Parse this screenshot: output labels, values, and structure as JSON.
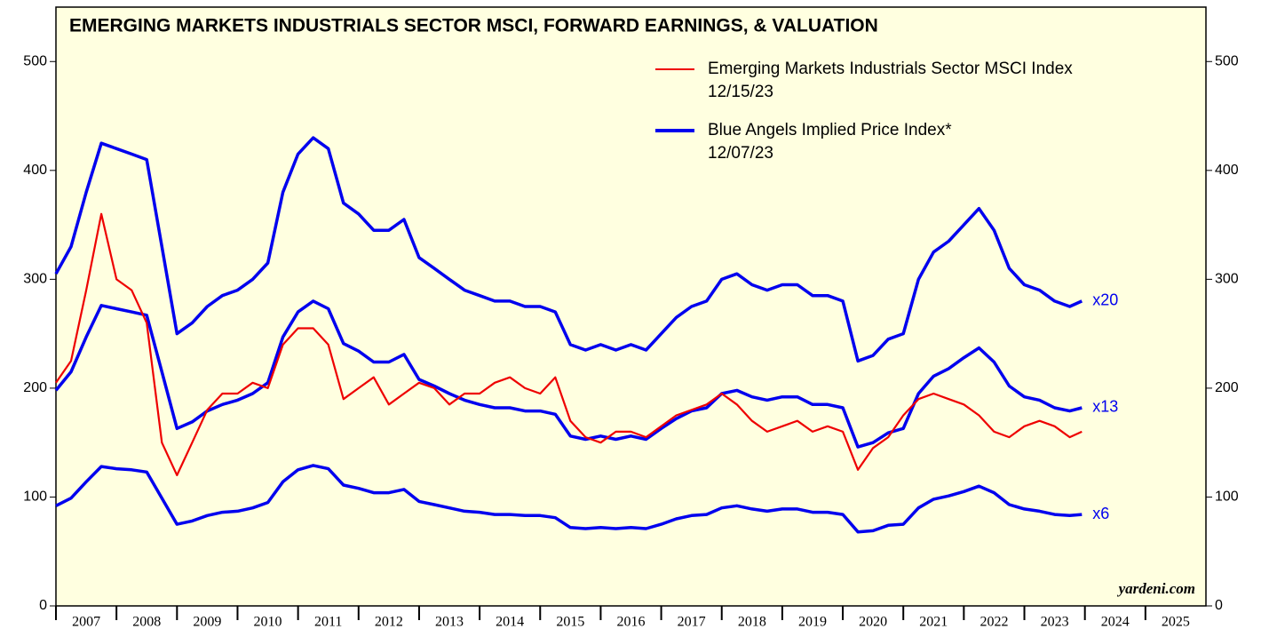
{
  "chart_data": {
    "type": "line",
    "title": "EMERGING MARKETS INDUSTRIALS SECTOR MSCI, FORWARD EARNINGS, & VALUATION",
    "watermark": "yardeni.com",
    "xlim": [
      2007,
      2026
    ],
    "xticks": [
      {
        "value": 2007,
        "label": "2007"
      },
      {
        "value": 2008,
        "label": "2008"
      },
      {
        "value": 2009,
        "label": "2009"
      },
      {
        "value": 2010,
        "label": "2010"
      },
      {
        "value": 2011,
        "label": "2011"
      },
      {
        "value": 2012,
        "label": "2012"
      },
      {
        "value": 2013,
        "label": "2013"
      },
      {
        "value": 2014,
        "label": "2014"
      },
      {
        "value": 2015,
        "label": "2015"
      },
      {
        "value": 2016,
        "label": "2016"
      },
      {
        "value": 2017,
        "label": "2017"
      },
      {
        "value": 2018,
        "label": "2018"
      },
      {
        "value": 2019,
        "label": "2019"
      },
      {
        "value": 2020,
        "label": "2020"
      },
      {
        "value": 2021,
        "label": "2021"
      },
      {
        "value": 2022,
        "label": "2022"
      },
      {
        "value": 2023,
        "label": "2023"
      },
      {
        "value": 2024,
        "label": "2024"
      },
      {
        "value": 2025,
        "label": "2025"
      }
    ],
    "ylim": [
      0,
      550
    ],
    "yticks": [
      0,
      100,
      200,
      300,
      400,
      500
    ],
    "x": [
      2007,
      2007.25,
      2007.5,
      2007.75,
      2008,
      2008.25,
      2008.5,
      2008.75,
      2009,
      2009.25,
      2009.5,
      2009.75,
      2010,
      2010.25,
      2010.5,
      2010.75,
      2011,
      2011.25,
      2011.5,
      2011.75,
      2012,
      2012.25,
      2012.5,
      2012.75,
      2013,
      2013.25,
      2013.5,
      2013.75,
      2014,
      2014.25,
      2014.5,
      2014.75,
      2015,
      2015.25,
      2015.5,
      2015.75,
      2016,
      2016.25,
      2016.5,
      2016.75,
      2017,
      2017.25,
      2017.5,
      2017.75,
      2018,
      2018.25,
      2018.5,
      2018.75,
      2019,
      2019.25,
      2019.5,
      2019.75,
      2020,
      2020.25,
      2020.5,
      2020.75,
      2021,
      2021.25,
      2021.5,
      2021.75,
      2022,
      2022.25,
      2022.5,
      2022.75,
      2023,
      2023.25,
      2023.5,
      2023.75,
      2023.95
    ],
    "series": [
      {
        "name": "Emerging Markets Industrials Sector MSCI Index",
        "date": "12/15/23",
        "color": "#ee0000",
        "values": [
          205,
          225,
          290,
          360,
          300,
          290,
          260,
          150,
          120,
          150,
          180,
          195,
          195,
          205,
          200,
          240,
          255,
          255,
          240,
          190,
          200,
          210,
          185,
          195,
          205,
          200,
          185,
          195,
          195,
          205,
          210,
          200,
          195,
          210,
          170,
          155,
          150,
          160,
          160,
          155,
          165,
          175,
          180,
          185,
          195,
          185,
          170,
          160,
          165,
          170,
          160,
          165,
          160,
          125,
          145,
          155,
          175,
          190,
          195,
          190,
          185,
          175,
          160,
          155,
          165,
          170,
          165,
          155,
          160
        ]
      },
      {
        "name": "x20",
        "color": "#0000ee",
        "values": [
          305,
          330,
          380,
          425,
          420,
          415,
          410,
          330,
          250,
          260,
          275,
          285,
          290,
          300,
          315,
          380,
          415,
          430,
          420,
          370,
          360,
          345,
          345,
          355,
          320,
          310,
          300,
          290,
          285,
          280,
          280,
          275,
          275,
          270,
          240,
          235,
          240,
          235,
          240,
          235,
          250,
          265,
          275,
          280,
          300,
          305,
          295,
          290,
          295,
          295,
          285,
          285,
          280,
          225,
          230,
          245,
          250,
          300,
          325,
          335,
          350,
          365,
          345,
          310,
          295,
          290,
          280,
          275,
          280
        ]
      },
      {
        "name": "x13",
        "color": "#0000ee",
        "values": [
          198,
          215,
          247,
          276,
          273,
          270,
          267,
          215,
          163,
          169,
          179,
          185,
          189,
          195,
          205,
          247,
          270,
          280,
          273,
          241,
          234,
          224,
          224,
          231,
          208,
          202,
          195,
          189,
          185,
          182,
          182,
          179,
          179,
          176,
          156,
          153,
          156,
          153,
          156,
          153,
          163,
          172,
          179,
          182,
          195,
          198,
          192,
          189,
          192,
          192,
          185,
          185,
          182,
          146,
          150,
          159,
          163,
          195,
          211,
          218,
          228,
          237,
          224,
          202,
          192,
          189,
          182,
          179,
          182
        ]
      },
      {
        "name": "x6",
        "color": "#0000ee",
        "values": [
          92,
          99,
          114,
          128,
          126,
          125,
          123,
          99,
          75,
          78,
          83,
          86,
          87,
          90,
          95,
          114,
          125,
          129,
          126,
          111,
          108,
          104,
          104,
          107,
          96,
          93,
          90,
          87,
          86,
          84,
          84,
          83,
          83,
          81,
          72,
          71,
          72,
          71,
          72,
          71,
          75,
          80,
          83,
          84,
          90,
          92,
          89,
          87,
          89,
          89,
          86,
          86,
          84,
          68,
          69,
          74,
          75,
          90,
          98,
          101,
          105,
          110,
          104,
          93,
          89,
          87,
          84,
          83,
          84
        ]
      }
    ],
    "blue_legend": {
      "name": "Blue Angels Implied Price Index*",
      "date": "12/07/23",
      "color": "#0000ee"
    }
  }
}
